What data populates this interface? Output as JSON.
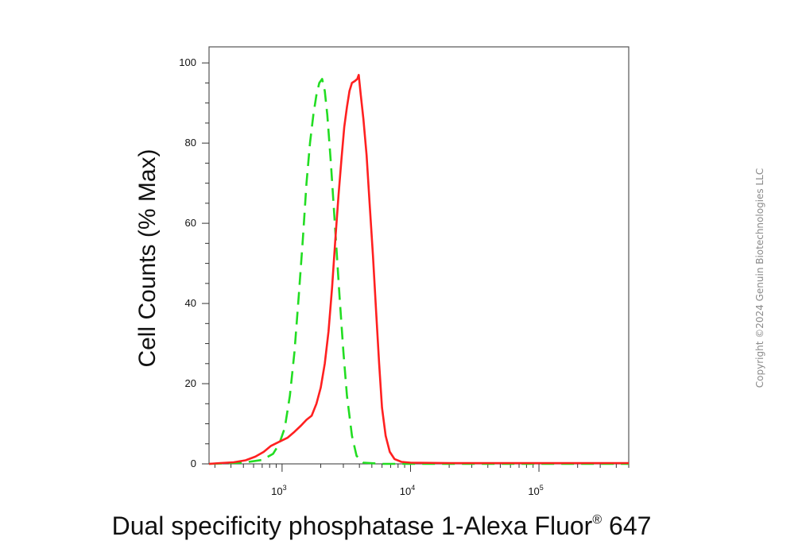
{
  "chart_data": {
    "type": "line",
    "xlabel_main": "Dual specificity phosphatase 1-Alexa Fluor",
    "xlabel_reg": "®",
    "xlabel_tail": " 647",
    "ylabel": "Cell Counts (% Max)",
    "x_scale": "log",
    "xlim": [
      270,
      500000
    ],
    "ylim": [
      0,
      104
    ],
    "y_ticks": [
      0,
      20,
      40,
      60,
      80,
      100
    ],
    "x_ticks": [
      {
        "value": 1000,
        "base": "10",
        "exp": "3"
      },
      {
        "value": 10000,
        "base": "10",
        "exp": "4"
      },
      {
        "value": 100000,
        "base": "10",
        "exp": "5"
      }
    ],
    "grid": false,
    "series": [
      {
        "style": "dashed",
        "color": "#22dd22",
        "points": [
          [
            270,
            0
          ],
          [
            500,
            0.3
          ],
          [
            700,
            1
          ],
          [
            850,
            2.5
          ],
          [
            950,
            5
          ],
          [
            1050,
            9
          ],
          [
            1150,
            17
          ],
          [
            1250,
            28
          ],
          [
            1350,
            42
          ],
          [
            1450,
            56
          ],
          [
            1550,
            70
          ],
          [
            1650,
            80
          ],
          [
            1750,
            87
          ],
          [
            1850,
            92
          ],
          [
            1950,
            95
          ],
          [
            2050,
            96
          ],
          [
            2150,
            93
          ],
          [
            2250,
            87
          ],
          [
            2400,
            75
          ],
          [
            2600,
            58
          ],
          [
            2800,
            42
          ],
          [
            3000,
            28
          ],
          [
            3200,
            17
          ],
          [
            3500,
            7
          ],
          [
            3800,
            2
          ],
          [
            4300,
            0.3
          ],
          [
            6000,
            0
          ],
          [
            500000,
            0
          ]
        ]
      },
      {
        "style": "solid",
        "color": "#ff2020",
        "points": [
          [
            270,
            0
          ],
          [
            330,
            0.2
          ],
          [
            420,
            0.4
          ],
          [
            520,
            0.9
          ],
          [
            620,
            1.8
          ],
          [
            720,
            3
          ],
          [
            820,
            4.5
          ],
          [
            950,
            5.5
          ],
          [
            1100,
            6.5
          ],
          [
            1250,
            8
          ],
          [
            1400,
            9.5
          ],
          [
            1550,
            11
          ],
          [
            1700,
            12
          ],
          [
            1850,
            15
          ],
          [
            2000,
            19
          ],
          [
            2150,
            25
          ],
          [
            2300,
            33
          ],
          [
            2450,
            44
          ],
          [
            2600,
            56
          ],
          [
            2750,
            67
          ],
          [
            2900,
            76
          ],
          [
            3050,
            84
          ],
          [
            3200,
            89
          ],
          [
            3350,
            93
          ],
          [
            3500,
            95
          ],
          [
            3700,
            95.5
          ],
          [
            3850,
            96
          ],
          [
            3950,
            97
          ],
          [
            4100,
            92
          ],
          [
            4300,
            86
          ],
          [
            4550,
            77
          ],
          [
            4800,
            65
          ],
          [
            5100,
            52
          ],
          [
            5400,
            38
          ],
          [
            5700,
            25
          ],
          [
            6000,
            14
          ],
          [
            6400,
            7
          ],
          [
            6900,
            3
          ],
          [
            7500,
            1.2
          ],
          [
            8500,
            0.5
          ],
          [
            10000,
            0.3
          ],
          [
            20000,
            0.2
          ],
          [
            100000,
            0.2
          ],
          [
            500000,
            0.2
          ]
        ]
      }
    ]
  },
  "watermark": "Copyright ©2024 Genuin Biotechnologies LLC"
}
